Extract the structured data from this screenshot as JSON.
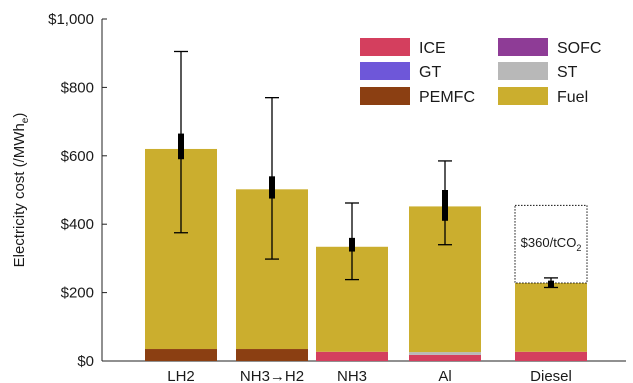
{
  "chart_data": {
    "type": "bar",
    "stacked": true,
    "title": "",
    "xlabel": "",
    "ylabel": "Electricity cost (/MWh",
    "ylabel_sub": "e",
    "ylabel_close": ")",
    "ylim": [
      0,
      1000
    ],
    "yticks": [
      {
        "value": 0,
        "label": "$0"
      },
      {
        "value": 200,
        "label": "$200"
      },
      {
        "value": 400,
        "label": "$400"
      },
      {
        "value": 600,
        "label": "$600"
      },
      {
        "value": 800,
        "label": "$800"
      },
      {
        "value": 1000,
        "label": "$1,000"
      }
    ],
    "categories": [
      "LH2",
      "NH3→H2",
      "NH3",
      "Al",
      "Diesel"
    ],
    "series": [
      {
        "name": "PEMFC",
        "color": "#8B3F12",
        "values": [
          35,
          35,
          0,
          0,
          0
        ]
      },
      {
        "name": "ICE",
        "color": "#D43F5E",
        "values": [
          0,
          0,
          27,
          18,
          27
        ]
      },
      {
        "name": "GT",
        "color": "#6E57D9",
        "values": [
          0,
          0,
          0,
          0,
          0
        ]
      },
      {
        "name": "SOFC",
        "color": "#8E3C96",
        "values": [
          0,
          0,
          0,
          0,
          0
        ]
      },
      {
        "name": "ST",
        "color": "#B8B8B8",
        "values": [
          0,
          0,
          0,
          8,
          0
        ]
      },
      {
        "name": "Fuel",
        "color": "#CBAE2E",
        "values": [
          585,
          467,
          307,
          426,
          201
        ]
      }
    ],
    "legend": {
      "placement": "top-right",
      "order": [
        "ICE",
        "SOFC",
        "GT",
        "ST",
        "PEMFC",
        "Fuel"
      ]
    },
    "error_bars": [
      {
        "category": "LH2",
        "low": 375,
        "high": 905,
        "box_low": 590,
        "box_high": 665
      },
      {
        "category": "NH3→H2",
        "low": 298,
        "high": 770,
        "box_low": 475,
        "box_high": 540
      },
      {
        "category": "NH3",
        "low": 238,
        "high": 462,
        "box_low": 320,
        "box_high": 360
      },
      {
        "category": "Al",
        "low": 340,
        "high": 585,
        "box_low": 410,
        "box_high": 500
      },
      {
        "category": "Diesel",
        "low": 215,
        "high": 243,
        "box_low": 215,
        "box_high": 235
      }
    ],
    "annotation": {
      "category": "Diesel",
      "text": "$360/tCO",
      "sub": "2",
      "box_low": 228,
      "box_high": 455
    }
  }
}
